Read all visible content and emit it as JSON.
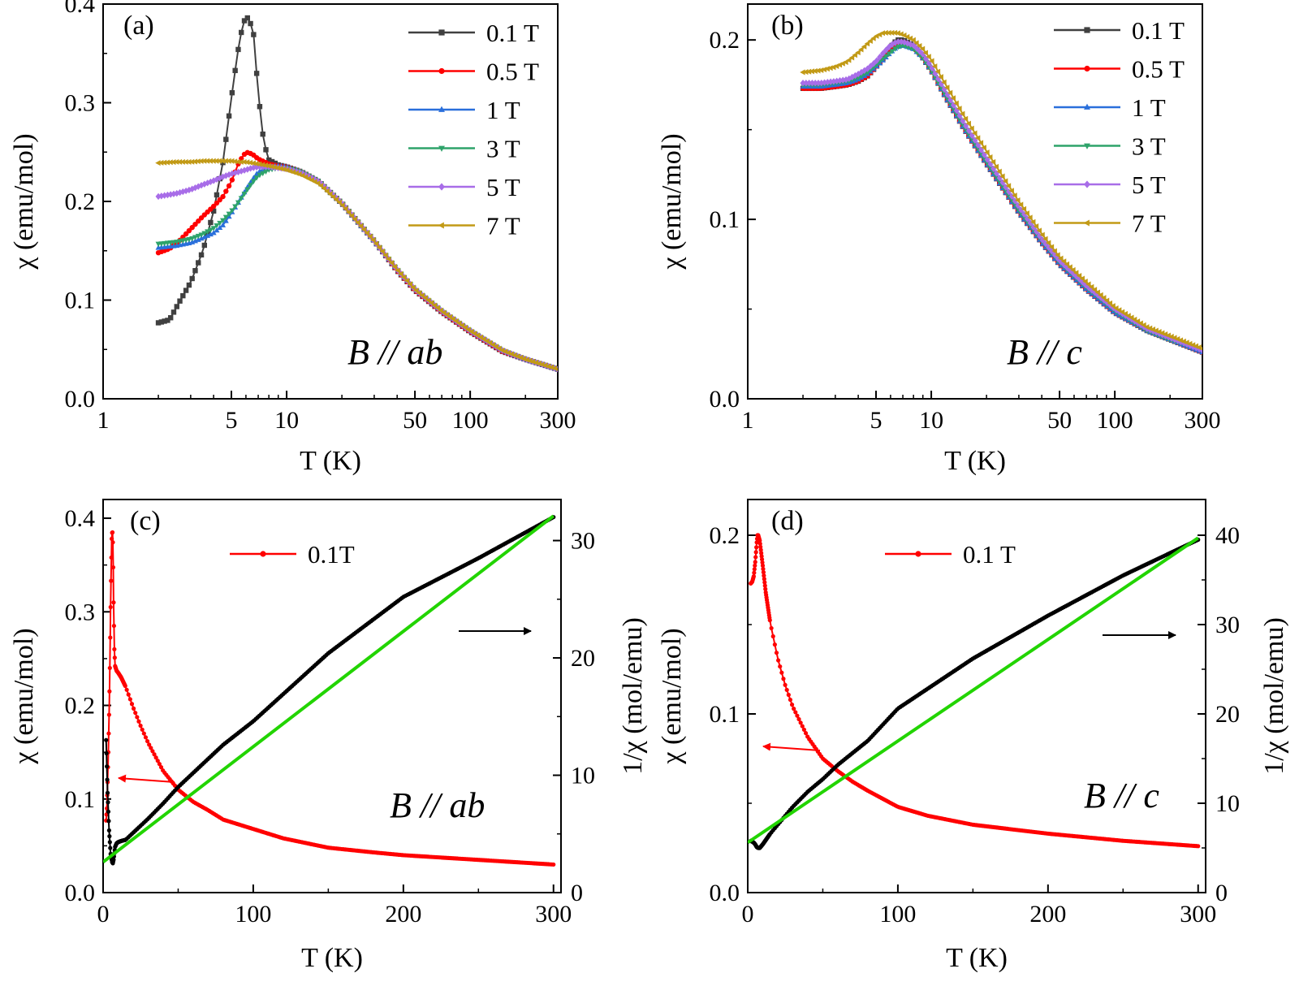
{
  "chart_data": [
    {
      "id": "a",
      "type": "line",
      "panel_label": "(a)",
      "annotation": "B // ab",
      "xlabel": "T (K)",
      "ylabel": "χ (emu/mol)",
      "xscale": "log",
      "xlim": [
        1,
        300
      ],
      "ylim": [
        0,
        0.4
      ],
      "xticks": [
        1,
        5,
        10,
        50,
        100,
        300
      ],
      "yticks": [
        0.0,
        0.1,
        0.2,
        0.3,
        0.4
      ],
      "legend": "top-right",
      "series": [
        {
          "name": "0.1 T",
          "color": "#404040",
          "marker": "square",
          "x": [
            2,
            2.3,
            2.6,
            3,
            3.5,
            4,
            4.5,
            5,
            5.4,
            5.8,
            6.2,
            6.6,
            7,
            7.5,
            8,
            9,
            10,
            12,
            15,
            20,
            30,
            40,
            50,
            70,
            100,
            150,
            200,
            300
          ],
          "y": [
            0.077,
            0.08,
            0.098,
            0.118,
            0.15,
            0.19,
            0.24,
            0.305,
            0.35,
            0.382,
            0.387,
            0.37,
            0.31,
            0.26,
            0.242,
            0.237,
            0.235,
            0.23,
            0.22,
            0.198,
            0.16,
            0.13,
            0.11,
            0.088,
            0.068,
            0.048,
            0.04,
            0.03
          ]
        },
        {
          "name": "0.5 T",
          "color": "#ff0000",
          "marker": "circle",
          "x": [
            2,
            2.3,
            2.6,
            3,
            3.5,
            4,
            4.5,
            5,
            5.5,
            6,
            6.5,
            7,
            8,
            9,
            10,
            12,
            15,
            20,
            30,
            40,
            50,
            70,
            100,
            150,
            200,
            300
          ],
          "y": [
            0.148,
            0.152,
            0.16,
            0.172,
            0.185,
            0.195,
            0.205,
            0.22,
            0.24,
            0.25,
            0.248,
            0.243,
            0.238,
            0.236,
            0.235,
            0.23,
            0.22,
            0.198,
            0.16,
            0.13,
            0.11,
            0.088,
            0.068,
            0.048,
            0.04,
            0.03
          ]
        },
        {
          "name": "1 T",
          "color": "#2a6fdb",
          "marker": "triangle-up",
          "x": [
            2,
            2.5,
            3,
            3.5,
            4,
            4.5,
            5,
            5.5,
            6,
            6.5,
            7,
            8,
            9,
            10,
            12,
            15,
            20,
            30,
            40,
            50,
            70,
            100,
            150,
            200,
            300
          ],
          "y": [
            0.153,
            0.155,
            0.158,
            0.163,
            0.168,
            0.176,
            0.188,
            0.2,
            0.212,
            0.222,
            0.23,
            0.235,
            0.236,
            0.235,
            0.23,
            0.22,
            0.198,
            0.16,
            0.131,
            0.111,
            0.089,
            0.069,
            0.049,
            0.04,
            0.03
          ]
        },
        {
          "name": "3 T",
          "color": "#2ea36a",
          "marker": "triangle-down",
          "x": [
            2,
            2.5,
            3,
            3.5,
            4,
            4.5,
            5,
            5.5,
            6,
            6.5,
            7,
            8,
            9,
            10,
            12,
            15,
            20,
            30,
            40,
            50,
            70,
            100,
            150,
            200,
            300
          ],
          "y": [
            0.157,
            0.159,
            0.162,
            0.167,
            0.173,
            0.181,
            0.19,
            0.2,
            0.21,
            0.219,
            0.226,
            0.232,
            0.234,
            0.234,
            0.23,
            0.22,
            0.198,
            0.16,
            0.131,
            0.111,
            0.089,
            0.069,
            0.049,
            0.04,
            0.03
          ]
        },
        {
          "name": "5 T",
          "color": "#a86de8",
          "marker": "diamond",
          "x": [
            2,
            2.5,
            3,
            3.5,
            4,
            4.5,
            5,
            5.5,
            6,
            6.5,
            7,
            8,
            9,
            10,
            12,
            15,
            20,
            30,
            40,
            50,
            70,
            100,
            150,
            200,
            300
          ],
          "y": [
            0.205,
            0.208,
            0.212,
            0.217,
            0.221,
            0.225,
            0.228,
            0.23,
            0.232,
            0.234,
            0.235,
            0.235,
            0.234,
            0.233,
            0.229,
            0.22,
            0.198,
            0.16,
            0.131,
            0.111,
            0.089,
            0.069,
            0.049,
            0.04,
            0.03
          ]
        },
        {
          "name": "7 T",
          "color": "#c29a16",
          "marker": "triangle-left",
          "x": [
            2,
            2.5,
            3,
            3.5,
            4,
            4.5,
            5,
            5.5,
            6,
            6.5,
            7,
            8,
            9,
            10,
            12,
            15,
            20,
            30,
            40,
            50,
            70,
            100,
            150,
            200,
            300
          ],
          "y": [
            0.239,
            0.24,
            0.24,
            0.241,
            0.241,
            0.241,
            0.241,
            0.24,
            0.24,
            0.239,
            0.238,
            0.236,
            0.234,
            0.232,
            0.227,
            0.218,
            0.197,
            0.16,
            0.131,
            0.111,
            0.089,
            0.069,
            0.049,
            0.04,
            0.03
          ]
        }
      ]
    },
    {
      "id": "b",
      "type": "line",
      "panel_label": "(b)",
      "annotation": "B // c",
      "xlabel": "T (K)",
      "ylabel": "χ (emu/mol)",
      "xscale": "log",
      "xlim": [
        1,
        300
      ],
      "ylim": [
        0,
        0.22
      ],
      "xticks": [
        1,
        5,
        10,
        50,
        100,
        300
      ],
      "yticks": [
        0.0,
        0.1,
        0.2
      ],
      "legend": "top-right",
      "series": [
        {
          "name": "0.1 T",
          "color": "#404040",
          "marker": "square",
          "x": [
            2,
            2.5,
            3,
            3.5,
            4,
            4.5,
            5,
            5.5,
            6,
            6.5,
            7,
            8,
            9,
            10,
            12,
            15,
            20,
            30,
            40,
            50,
            70,
            100,
            150,
            200,
            300
          ],
          "y": [
            0.173,
            0.173,
            0.174,
            0.175,
            0.177,
            0.18,
            0.185,
            0.19,
            0.196,
            0.2,
            0.2,
            0.197,
            0.19,
            0.183,
            0.168,
            0.151,
            0.131,
            0.104,
            0.087,
            0.075,
            0.061,
            0.048,
            0.038,
            0.033,
            0.026
          ]
        },
        {
          "name": "0.5 T",
          "color": "#ff0000",
          "marker": "circle",
          "x": [
            2,
            2.5,
            3,
            3.5,
            4,
            4.5,
            5,
            5.5,
            6,
            6.5,
            7,
            8,
            9,
            10,
            12,
            15,
            20,
            30,
            40,
            50,
            70,
            100,
            150,
            200,
            300
          ],
          "y": [
            0.173,
            0.173,
            0.174,
            0.175,
            0.177,
            0.18,
            0.185,
            0.19,
            0.195,
            0.198,
            0.199,
            0.196,
            0.19,
            0.183,
            0.168,
            0.151,
            0.131,
            0.104,
            0.087,
            0.075,
            0.061,
            0.048,
            0.038,
            0.033,
            0.026
          ]
        },
        {
          "name": "1 T",
          "color": "#2a6fdb",
          "marker": "triangle-up",
          "x": [
            2,
            2.5,
            3,
            3.5,
            4,
            4.5,
            5,
            5.5,
            6,
            6.5,
            7,
            8,
            9,
            10,
            12,
            15,
            20,
            30,
            40,
            50,
            70,
            100,
            150,
            200,
            300
          ],
          "y": [
            0.174,
            0.174,
            0.175,
            0.176,
            0.178,
            0.181,
            0.185,
            0.189,
            0.193,
            0.196,
            0.197,
            0.195,
            0.19,
            0.183,
            0.168,
            0.151,
            0.131,
            0.104,
            0.087,
            0.075,
            0.061,
            0.048,
            0.038,
            0.033,
            0.026
          ]
        },
        {
          "name": "3 T",
          "color": "#2ea36a",
          "marker": "triangle-down",
          "x": [
            2,
            2.5,
            3,
            3.5,
            4,
            4.5,
            5,
            5.5,
            6,
            6.5,
            7,
            8,
            9,
            10,
            12,
            15,
            20,
            30,
            40,
            50,
            70,
            100,
            150,
            200,
            300
          ],
          "y": [
            0.175,
            0.175,
            0.176,
            0.177,
            0.179,
            0.182,
            0.186,
            0.19,
            0.193,
            0.196,
            0.197,
            0.195,
            0.19,
            0.183,
            0.169,
            0.152,
            0.132,
            0.105,
            0.088,
            0.076,
            0.062,
            0.049,
            0.038,
            0.033,
            0.027
          ]
        },
        {
          "name": "5 T",
          "color": "#a86de8",
          "marker": "diamond",
          "x": [
            2,
            2.5,
            3,
            3.5,
            4,
            4.5,
            5,
            5.5,
            6,
            6.5,
            7,
            8,
            9,
            10,
            12,
            15,
            20,
            30,
            40,
            50,
            70,
            100,
            150,
            200,
            300
          ],
          "y": [
            0.176,
            0.176,
            0.177,
            0.178,
            0.181,
            0.184,
            0.188,
            0.193,
            0.197,
            0.199,
            0.199,
            0.197,
            0.192,
            0.185,
            0.171,
            0.154,
            0.134,
            0.107,
            0.089,
            0.077,
            0.063,
            0.05,
            0.039,
            0.034,
            0.027
          ]
        },
        {
          "name": "7 T",
          "color": "#c29a16",
          "marker": "triangle-left",
          "x": [
            2,
            2.5,
            3,
            3.5,
            4,
            4.5,
            5,
            5.5,
            6,
            6.5,
            7,
            8,
            9,
            10,
            12,
            15,
            20,
            30,
            40,
            50,
            70,
            100,
            150,
            200,
            300
          ],
          "y": [
            0.182,
            0.183,
            0.185,
            0.188,
            0.193,
            0.198,
            0.202,
            0.204,
            0.204,
            0.204,
            0.203,
            0.2,
            0.195,
            0.189,
            0.175,
            0.158,
            0.138,
            0.11,
            0.092,
            0.079,
            0.065,
            0.051,
            0.04,
            0.035,
            0.028
          ]
        }
      ]
    },
    {
      "id": "c",
      "type": "line",
      "panel_label": "(c)",
      "annotation": "B // ab",
      "xlabel": "T (K)",
      "ylabel": "χ (emu/mol)",
      "y2label": "1/χ (mol/emu)",
      "xlim": [
        0,
        305
      ],
      "ylim": [
        0,
        0.42
      ],
      "y2lim": [
        0,
        33.5
      ],
      "xticks": [
        0,
        100,
        200,
        300
      ],
      "yticks": [
        0.0,
        0.1,
        0.2,
        0.3,
        0.4
      ],
      "y2ticks": [
        0,
        10,
        20,
        30
      ],
      "legend": "top-center",
      "series": [
        {
          "name": "0.1T",
          "color": "#ff0000",
          "marker": "circle",
          "axis": "left",
          "x": [
            2,
            2.5,
            3,
            3.5,
            4,
            4.5,
            5,
            5.4,
            5.8,
            6.2,
            6.6,
            7,
            7.5,
            8,
            9,
            10,
            12,
            15,
            20,
            25,
            30,
            40,
            50,
            60,
            70,
            80,
            100,
            120,
            150,
            180,
            200,
            250,
            300
          ],
          "y": [
            0.077,
            0.09,
            0.118,
            0.15,
            0.19,
            0.24,
            0.305,
            0.35,
            0.382,
            0.387,
            0.37,
            0.31,
            0.26,
            0.242,
            0.237,
            0.235,
            0.23,
            0.22,
            0.198,
            0.178,
            0.16,
            0.13,
            0.11,
            0.097,
            0.088,
            0.078,
            0.068,
            0.058,
            0.048,
            0.043,
            0.04,
            0.035,
            0.03
          ]
        },
        {
          "name": "",
          "color": "#000000",
          "marker": "circle",
          "axis": "right",
          "x": [
            2,
            3,
            4,
            5,
            6,
            6.5,
            7,
            8,
            9,
            10,
            12,
            15,
            20,
            30,
            40,
            50,
            60,
            80,
            100,
            150,
            200,
            250,
            300
          ],
          "y": [
            13.0,
            8.5,
            5.3,
            3.3,
            2.6,
            2.5,
            2.8,
            3.9,
            4.2,
            4.3,
            4.4,
            4.5,
            5.1,
            6.3,
            7.6,
            9.0,
            10.2,
            12.6,
            14.6,
            20.4,
            25.2,
            28.5,
            32.0
          ]
        },
        {
          "name": "",
          "color": "#22d400",
          "marker": "none",
          "axis": "right",
          "x": [
            0,
            300
          ],
          "y": [
            2.6,
            32.1
          ]
        }
      ]
    },
    {
      "id": "d",
      "type": "line",
      "panel_label": "(d)",
      "annotation": "B // c",
      "xlabel": "T (K)",
      "ylabel": "χ (emu/mol)",
      "y2label": "1/χ (mol/emu)",
      "xlim": [
        0,
        305
      ],
      "ylim": [
        0,
        0.22
      ],
      "y2lim": [
        0,
        44
      ],
      "xticks": [
        0,
        100,
        200,
        300
      ],
      "yticks": [
        0.0,
        0.1,
        0.2
      ],
      "y2ticks": [
        0,
        10,
        20,
        30,
        40
      ],
      "legend": "top-center",
      "series": [
        {
          "name": "0.1 T",
          "color": "#ff0000",
          "marker": "circle",
          "axis": "left",
          "x": [
            2,
            3,
            4,
            5,
            6,
            6.5,
            7,
            8,
            9,
            10,
            12,
            15,
            20,
            25,
            30,
            40,
            50,
            60,
            70,
            80,
            100,
            120,
            150,
            180,
            200,
            250,
            300
          ],
          "y": [
            0.173,
            0.174,
            0.177,
            0.185,
            0.196,
            0.2,
            0.2,
            0.197,
            0.19,
            0.183,
            0.168,
            0.151,
            0.131,
            0.116,
            0.104,
            0.087,
            0.075,
            0.068,
            0.062,
            0.057,
            0.048,
            0.043,
            0.038,
            0.035,
            0.033,
            0.029,
            0.026
          ]
        },
        {
          "name": "",
          "color": "#000000",
          "marker": "circle",
          "axis": "right",
          "x": [
            2,
            4,
            5,
            6,
            7,
            8,
            10,
            15,
            20,
            30,
            40,
            50,
            60,
            80,
            100,
            150,
            200,
            250,
            300
          ],
          "y": [
            5.8,
            5.6,
            5.4,
            5.1,
            5.0,
            5.0,
            5.4,
            6.6,
            7.6,
            9.6,
            11.3,
            12.7,
            14.3,
            17.0,
            20.6,
            26.2,
            31.0,
            35.5,
            39.5
          ]
        },
        {
          "name": "",
          "color": "#22d400",
          "marker": "none",
          "axis": "right",
          "x": [
            0,
            300
          ],
          "y": [
            5.6,
            39.7
          ]
        }
      ]
    }
  ]
}
